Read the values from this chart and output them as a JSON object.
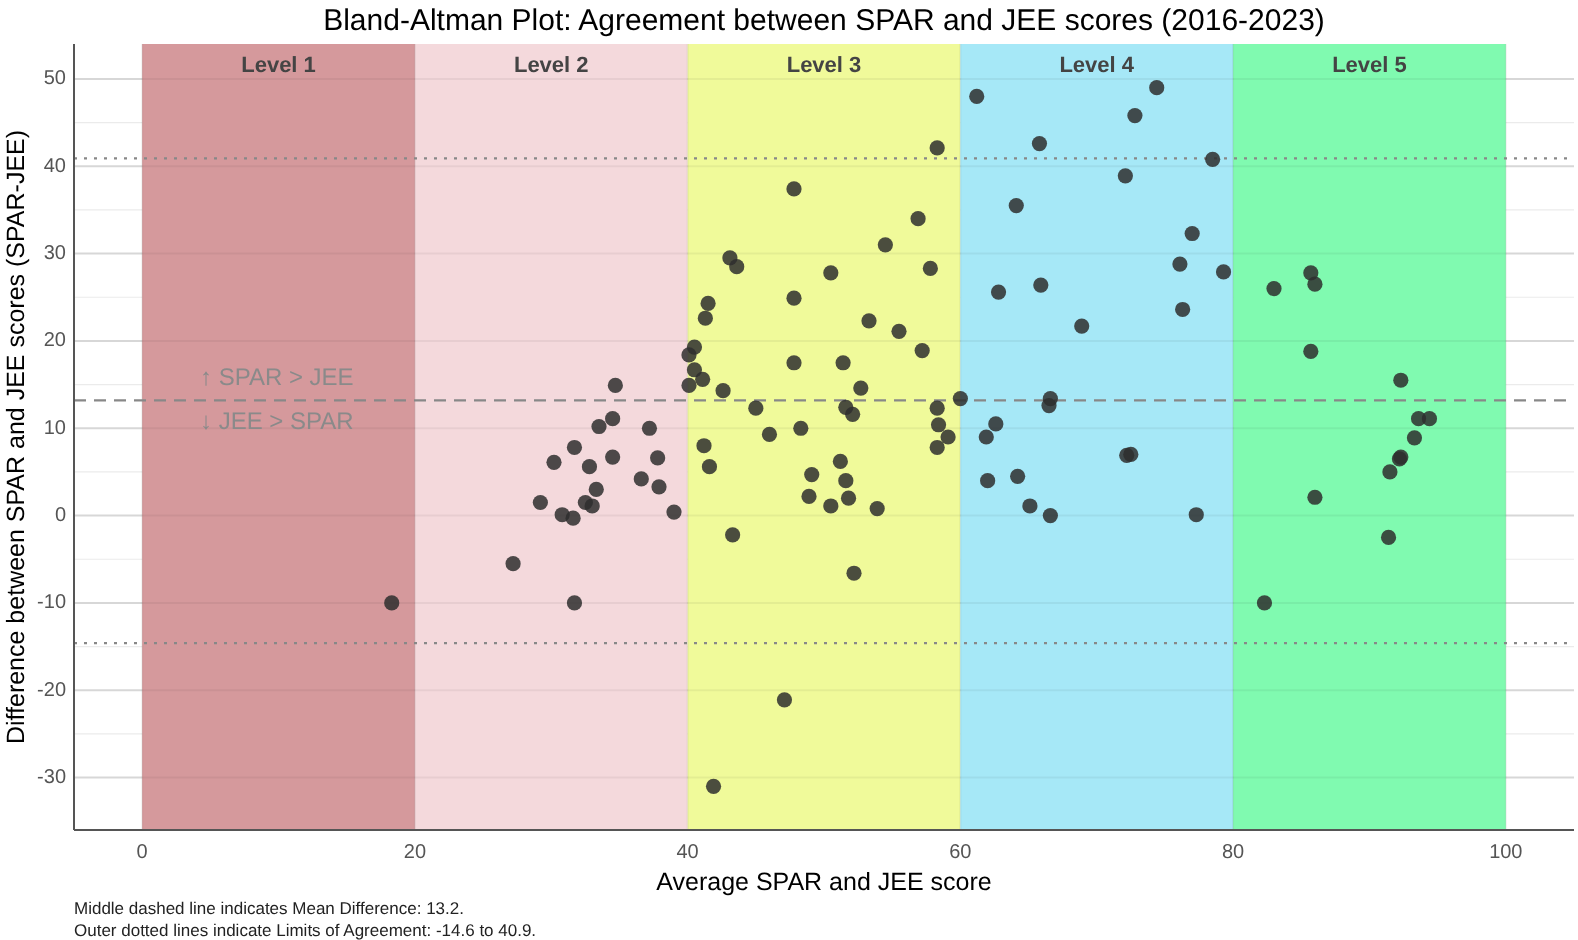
{
  "chart_data": {
    "type": "scatter",
    "title": "Bland-Altman Plot: Agreement between SPAR and JEE scores (2016-2023)",
    "xlabel": "Average SPAR and JEE score",
    "ylabel": "Difference between SPAR and JEE scores (SPAR-JEE)",
    "xlim": [
      -5,
      105
    ],
    "xticks": [
      0,
      20,
      40,
      60,
      80,
      100
    ],
    "ylim": [
      -36,
      54
    ],
    "yticks": [
      -30,
      -20,
      -10,
      0,
      10,
      20,
      30,
      40,
      50
    ],
    "grid": true,
    "marker": "circle",
    "bands": [
      {
        "axis": "x",
        "from": 0,
        "to": 20,
        "label": "Level 1",
        "color": "#d5999c"
      },
      {
        "axis": "x",
        "from": 20,
        "to": 40,
        "label": "Level 2",
        "color": "#f4d9dc"
      },
      {
        "axis": "x",
        "from": 40,
        "to": 60,
        "label": "Level 3",
        "color": "#f0fa9a"
      },
      {
        "axis": "x",
        "from": 60,
        "to": 80,
        "label": "Level 4",
        "color": "#a6e8f7"
      },
      {
        "axis": "x",
        "from": 80,
        "to": 100,
        "label": "Level 5",
        "color": "#80fab0"
      }
    ],
    "ref_lines": [
      {
        "axis": "y",
        "value": 13.2,
        "label": null,
        "color": "#888888",
        "line_style": "dashed"
      },
      {
        "axis": "y",
        "value": 40.9,
        "label": null,
        "color": "#888888",
        "line_style": "dotted"
      },
      {
        "axis": "y",
        "value": -14.6,
        "label": null,
        "color": "#888888",
        "line_style": "dotted"
      }
    ],
    "annotations": [
      "↑ SPAR > JEE",
      "↓ JEE > SPAR",
      "Middle dashed line indicates Mean Difference: 13.2.",
      "Outer dotted lines indicate Limits of Agreement: -14.6 to 40.9."
    ],
    "series": [
      {
        "color": "#2e2e2e",
        "x": [
          18.3,
          27.2,
          29.2,
          30.2,
          30.8,
          31.6,
          31.7,
          31.7,
          32.5,
          32.8,
          33.0,
          33.3,
          33.5,
          34.5,
          34.5,
          34.7,
          36.6,
          37.2,
          37.8,
          37.9,
          39.0,
          40.1,
          40.1,
          40.5,
          40.5,
          41.1,
          41.2,
          41.3,
          41.5,
          41.6,
          41.9,
          42.6,
          43.1,
          43.3,
          43.6,
          45.0,
          46.0,
          47.1,
          47.8,
          47.8,
          47.8,
          48.3,
          48.9,
          49.1,
          50.5,
          50.5,
          51.2,
          51.4,
          51.6,
          51.6,
          51.8,
          52.1,
          52.2,
          52.7,
          53.3,
          53.9,
          54.5,
          55.5,
          56.9,
          57.2,
          57.8,
          58.3,
          58.3,
          58.3,
          58.4,
          59.1,
          60.0,
          61.2,
          61.9,
          62.0,
          62.6,
          62.8,
          64.1,
          64.2,
          65.1,
          65.8,
          65.9,
          66.5,
          66.6,
          66.6,
          68.9,
          72.1,
          72.2,
          72.5,
          72.8,
          74.4,
          76.1,
          76.3,
          77.0,
          77.3,
          78.5,
          79.3,
          82.3,
          83.0,
          85.7,
          85.7,
          86.0,
          86.0,
          91.4,
          91.5,
          92.2,
          92.3,
          92.3,
          93.3,
          93.6,
          94.4
        ],
        "values": [
          -10.0,
          -5.5,
          1.5,
          6.1,
          0.1,
          -0.3,
          7.8,
          -10.0,
          1.5,
          5.6,
          1.1,
          3.0,
          10.2,
          11.1,
          6.7,
          14.9,
          4.2,
          10.0,
          6.6,
          3.3,
          0.4,
          18.4,
          14.9,
          19.3,
          16.7,
          15.6,
          8.0,
          22.6,
          24.3,
          5.6,
          -31.0,
          14.3,
          29.5,
          -2.2,
          28.5,
          12.3,
          9.3,
          -21.1,
          24.9,
          17.5,
          37.4,
          10.0,
          2.2,
          4.7,
          27.8,
          1.1,
          6.2,
          17.5,
          12.4,
          4.0,
          2.0,
          11.6,
          -6.6,
          14.6,
          22.3,
          0.8,
          31.0,
          21.1,
          34.0,
          18.9,
          28.3,
          12.3,
          7.8,
          42.1,
          10.4,
          9.0,
          13.4,
          48.0,
          9.0,
          4.0,
          10.5,
          25.6,
          35.5,
          4.5,
          1.1,
          42.6,
          26.4,
          12.6,
          13.4,
          0.0,
          21.7,
          38.9,
          6.9,
          7.0,
          45.8,
          49.0,
          28.8,
          23.6,
          32.3,
          0.1,
          40.8,
          27.9,
          -10.0,
          26.0,
          27.8,
          18.8,
          26.5,
          2.1,
          -2.5,
          5.0,
          6.5,
          6.7,
          15.5,
          8.9,
          11.1,
          11.1
        ]
      }
    ]
  }
}
